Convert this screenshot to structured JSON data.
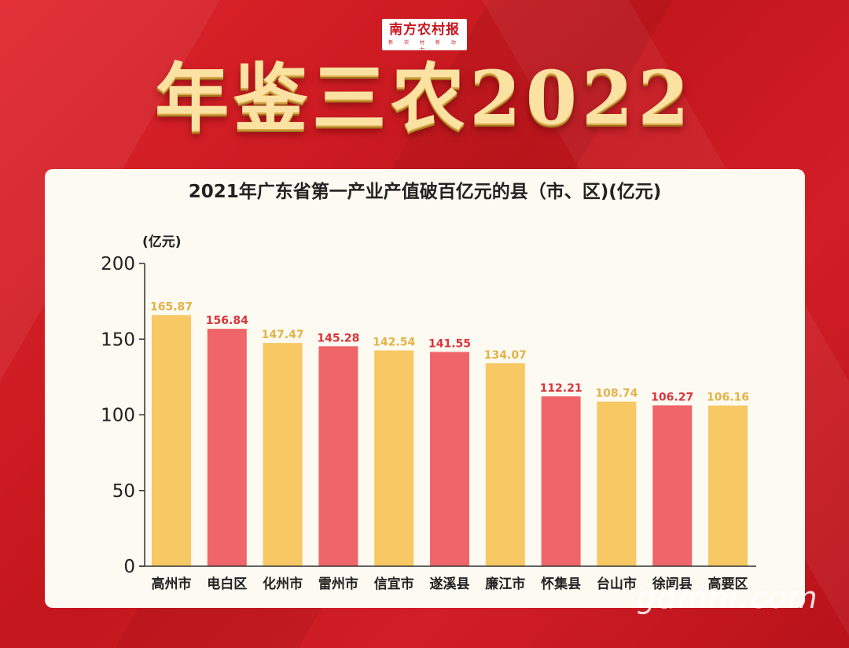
{
  "masthead": {
    "name": "南方农村报",
    "sub": "新 农 村 新 动 力"
  },
  "headline": "年鉴三农2022",
  "watermark": "gdmm.com",
  "colors": {
    "gold": "#f7c863",
    "red": "#f0656a",
    "gold_label": "#e3b247",
    "red_label": "#d8353d"
  },
  "chart_data": {
    "type": "bar",
    "title": "2021年广东省第一产业产值破百亿元的县（市、区)(亿元)",
    "ylabel": "(亿元)",
    "ylim": [
      0,
      200
    ],
    "yticks": [
      0,
      50,
      100,
      150,
      200
    ],
    "categories": [
      "高州市",
      "电白区",
      "化州市",
      "雷州市",
      "信宜市",
      "遂溪县",
      "廉江市",
      "怀集县",
      "台山市",
      "徐闻县",
      "高要区"
    ],
    "values": [
      165.87,
      156.84,
      147.47,
      145.28,
      142.54,
      141.55,
      134.07,
      112.21,
      108.74,
      106.27,
      106.16
    ],
    "value_labels": [
      "165.87",
      "156.84",
      "147.47",
      "145.28",
      "142.54",
      "141.55",
      "134.07",
      "112.21",
      "108.74",
      "106.27",
      "106.16"
    ],
    "bar_colors": [
      "gold",
      "red",
      "gold",
      "red",
      "gold",
      "red",
      "gold",
      "red",
      "gold",
      "red",
      "gold"
    ],
    "grid": false,
    "legend": "none"
  }
}
